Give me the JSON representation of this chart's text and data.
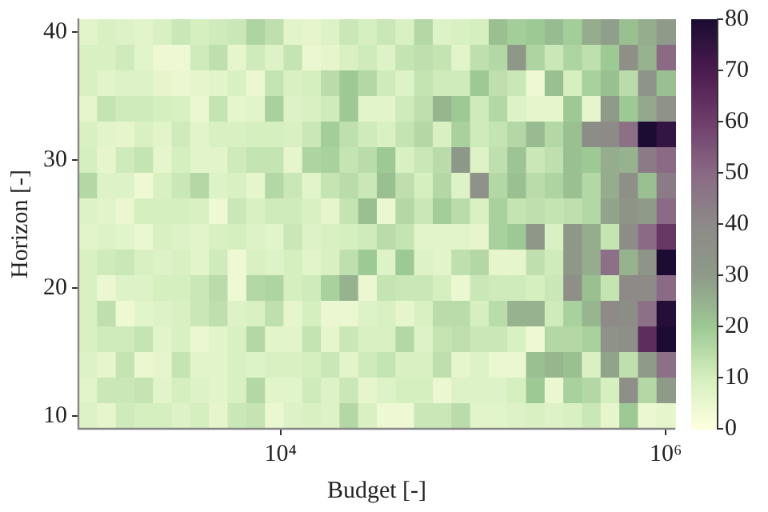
{
  "chart_data": {
    "type": "heatmap",
    "xlabel": "Budget [-]",
    "ylabel": "Horizon [-]",
    "log": "x",
    "xlim": [
      890,
      1120000
    ],
    "xticks": [
      {
        "value": 10000,
        "label": "10⁴"
      },
      {
        "value": 1000000,
        "label": "10⁶"
      }
    ],
    "ylim": [
      9,
      41
    ],
    "yticks": [
      10,
      20,
      30,
      40
    ],
    "clim": [
      0,
      80
    ],
    "cticks": [
      0,
      10,
      20,
      30,
      40,
      50,
      60,
      70,
      80
    ],
    "cells": [
      [
        7,
        9,
        8,
        7,
        9,
        12,
        10,
        11,
        12,
        17,
        14,
        7,
        6,
        8,
        12,
        10,
        12,
        9,
        16,
        8,
        9,
        10,
        22,
        19,
        20,
        23,
        19,
        26,
        29,
        22,
        26,
        30
      ],
      [
        9,
        9,
        11,
        7,
        4,
        4,
        11,
        14,
        6,
        11,
        8,
        13,
        5,
        6,
        9,
        11,
        8,
        13,
        14,
        13,
        7,
        14,
        16,
        32,
        17,
        12,
        17,
        14,
        20,
        36,
        25,
        50
      ],
      [
        9,
        7,
        8,
        8,
        6,
        5,
        6,
        7,
        9,
        5,
        13,
        9,
        10,
        15,
        20,
        16,
        11,
        8,
        13,
        11,
        11,
        20,
        14,
        12,
        4,
        22,
        10,
        18,
        22,
        15,
        33,
        22
      ],
      [
        6,
        13,
        11,
        11,
        10,
        9,
        5,
        13,
        6,
        7,
        18,
        8,
        9,
        11,
        20,
        7,
        7,
        11,
        14,
        24,
        20,
        11,
        16,
        8,
        6,
        6,
        20,
        6,
        30,
        20,
        27,
        35
      ],
      [
        9,
        7,
        6,
        9,
        7,
        11,
        7,
        9,
        9,
        10,
        10,
        9,
        12,
        19,
        14,
        11,
        9,
        13,
        16,
        9,
        18,
        11,
        13,
        16,
        23,
        16,
        22,
        38,
        40,
        48,
        80,
        75
      ],
      [
        10,
        6,
        11,
        13,
        6,
        10,
        7,
        7,
        11,
        13,
        13,
        6,
        17,
        18,
        13,
        15,
        20,
        9,
        12,
        15,
        32,
        8,
        14,
        21,
        12,
        14,
        22,
        20,
        26,
        25,
        45,
        50
      ],
      [
        16,
        8,
        8,
        4,
        9,
        12,
        16,
        8,
        9,
        6,
        16,
        12,
        7,
        13,
        15,
        12,
        22,
        14,
        10,
        16,
        8,
        35,
        16,
        22,
        15,
        17,
        22,
        16,
        26,
        36,
        22,
        45
      ],
      [
        8,
        7,
        5,
        10,
        10,
        10,
        9,
        4,
        12,
        9,
        11,
        11,
        9,
        6,
        13,
        22,
        5,
        16,
        12,
        19,
        15,
        9,
        18,
        13,
        14,
        13,
        14,
        16,
        28,
        34,
        30,
        50
      ],
      [
        7,
        8,
        7,
        5,
        9,
        8,
        7,
        9,
        10,
        8,
        7,
        12,
        8,
        9,
        10,
        11,
        15,
        13,
        7,
        7,
        7,
        6,
        18,
        20,
        32,
        9,
        32,
        26,
        13,
        38,
        50,
        62
      ],
      [
        9,
        11,
        12,
        9,
        8,
        9,
        7,
        11,
        4,
        9,
        8,
        10,
        7,
        9,
        14,
        20,
        8,
        20,
        8,
        7,
        14,
        16,
        6,
        6,
        14,
        11,
        32,
        26,
        48,
        25,
        34,
        80
      ],
      [
        9,
        5,
        8,
        8,
        10,
        10,
        12,
        15,
        4,
        16,
        17,
        10,
        11,
        18,
        25,
        5,
        13,
        12,
        12,
        10,
        5,
        12,
        11,
        11,
        10,
        12,
        36,
        22,
        13,
        40,
        40,
        50
      ],
      [
        9,
        14,
        4,
        7,
        8,
        9,
        12,
        14,
        8,
        9,
        14,
        6,
        10,
        5,
        5,
        8,
        9,
        6,
        9,
        15,
        15,
        10,
        15,
        25,
        25,
        11,
        18,
        24,
        40,
        38,
        48,
        78
      ],
      [
        9,
        11,
        11,
        13,
        7,
        9,
        5,
        7,
        9,
        16,
        7,
        7,
        13,
        6,
        12,
        9,
        9,
        16,
        8,
        13,
        14,
        12,
        12,
        9,
        4,
        16,
        16,
        18,
        35,
        36,
        65,
        80
      ],
      [
        8,
        6,
        13,
        5,
        6,
        13,
        7,
        7,
        9,
        8,
        9,
        9,
        10,
        12,
        7,
        11,
        13,
        9,
        9,
        14,
        6,
        8,
        5,
        5,
        22,
        24,
        22,
        9,
        28,
        14,
        30,
        48
      ],
      [
        7,
        12,
        12,
        13,
        7,
        10,
        8,
        7,
        9,
        16,
        7,
        7,
        11,
        8,
        12,
        6,
        8,
        10,
        10,
        5,
        8,
        8,
        8,
        10,
        20,
        5,
        18,
        16,
        10,
        36,
        16,
        30
      ],
      [
        8,
        6,
        11,
        10,
        10,
        8,
        10,
        6,
        12,
        13,
        5,
        8,
        9,
        8,
        16,
        9,
        4,
        4,
        12,
        12,
        15,
        7,
        7,
        8,
        9,
        8,
        9,
        12,
        6,
        20,
        5,
        6
      ]
    ]
  }
}
